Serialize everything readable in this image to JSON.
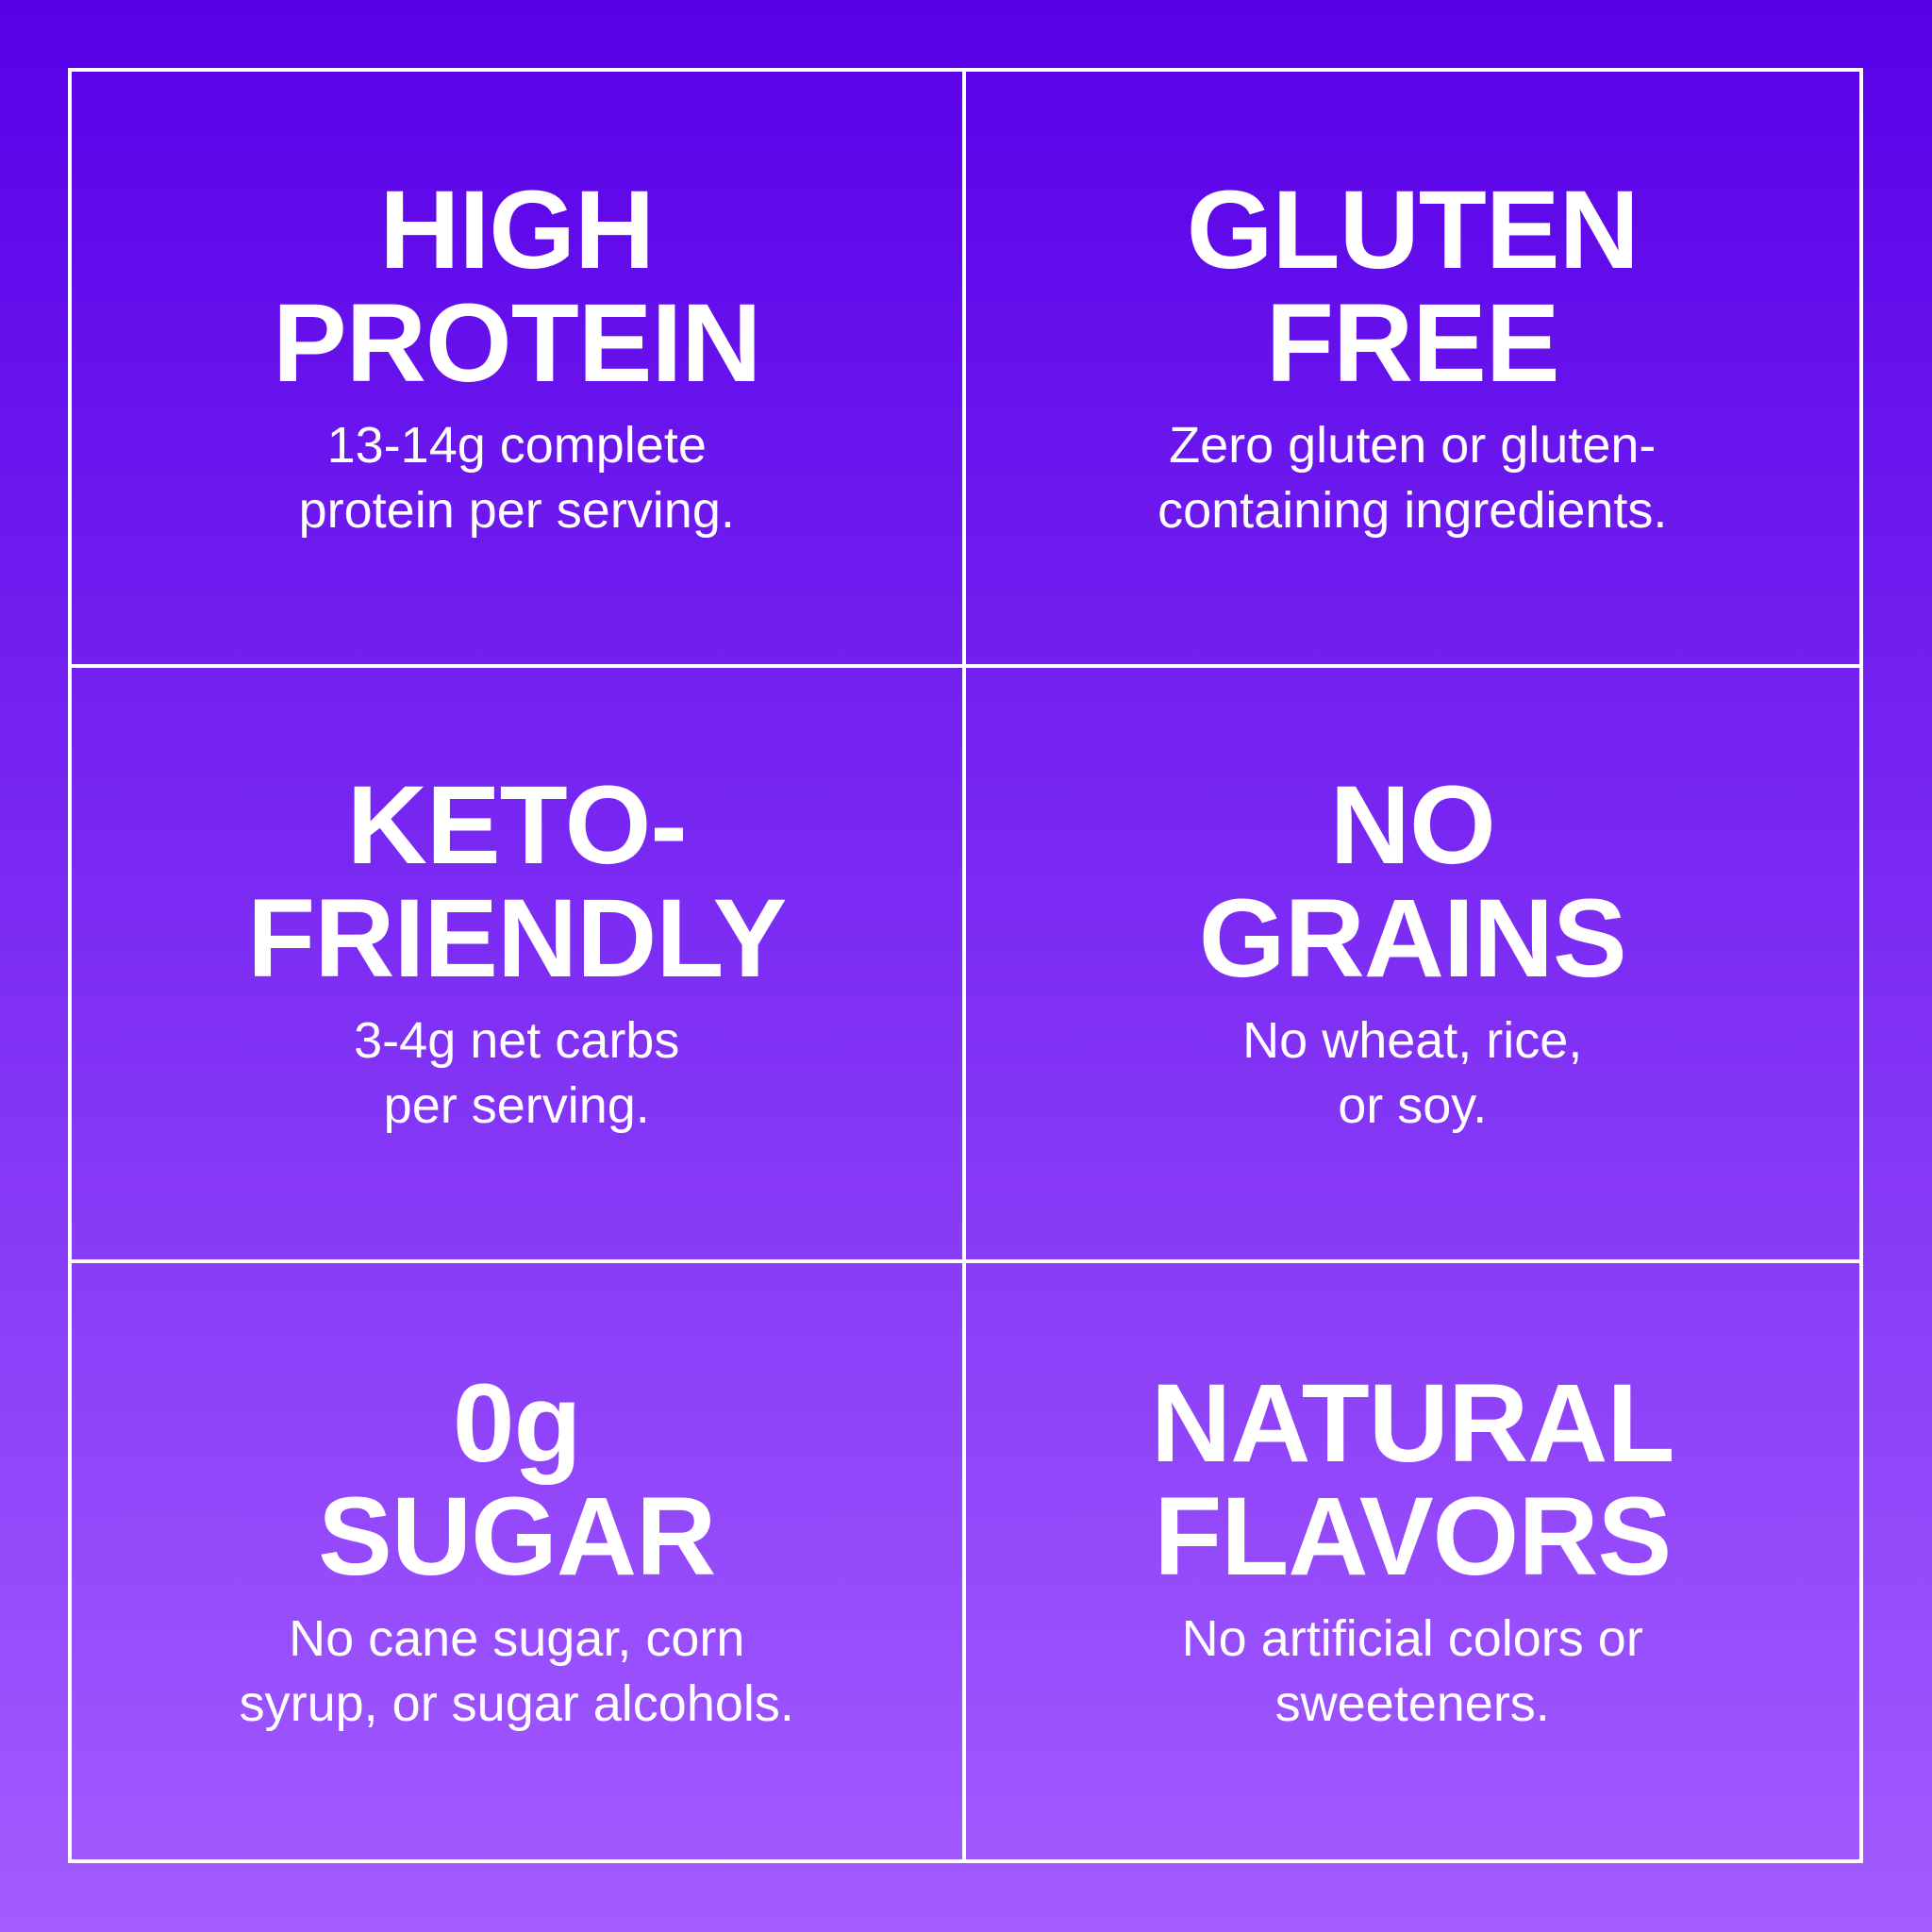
{
  "background": {
    "top_color": "#5800e8",
    "bottom_color": "#a35cff"
  },
  "features": [
    {
      "title": "HIGH\nPROTEIN",
      "description": "13-14g complete\nprotein per serving."
    },
    {
      "title": "GLUTEN\nFREE",
      "description": "Zero gluten or gluten-\ncontaining ingredients."
    },
    {
      "title": "KETO-\nFRIENDLY",
      "description": "3-4g net carbs\nper serving."
    },
    {
      "title": "NO\nGRAINS",
      "description": "No wheat, rice,\nor soy."
    },
    {
      "title": "0g\nSUGAR",
      "description": "No cane sugar, corn\nsyrup, or sugar alcohols."
    },
    {
      "title": "NATURAL\nFLAVORS",
      "description": "No artificial colors or\nsweeteners."
    }
  ]
}
